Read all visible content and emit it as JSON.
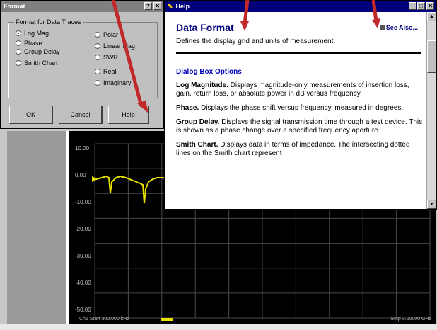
{
  "format_dialog": {
    "title": "Format",
    "help_btn": "?",
    "close_btn": "✕",
    "group_label": "Format for Data Traces",
    "options_left": [
      "Log Mag",
      "Phase",
      "Group Delay",
      "Smith Chart"
    ],
    "options_right": [
      "Polar",
      "Linear Mag",
      "SWR",
      "Real",
      "Imaginary"
    ],
    "selected": "Log Mag",
    "buttons": {
      "ok": "OK",
      "cancel": "Cancel",
      "help": "Help"
    }
  },
  "help_window": {
    "title": "Help",
    "window_btns": [
      "_",
      "□",
      "✕"
    ],
    "heading": "Data Format",
    "see_also": "See Also...",
    "description": "Defines the display grid and units of measurement.",
    "subheading": "Dialog Box Options",
    "items": [
      {
        "term": "Log Magnitude.",
        "text": " Displays magnitude-only measurements of insertion loss, gain, return loss, or absolute power in dB versus frequency."
      },
      {
        "term": "Phase.",
        "text": " Displays the phase shift versus frequency, measured in degrees."
      },
      {
        "term": "Group Delay.",
        "text": " Displays the signal transmission time through a test device. This is shown as a phase change over a specified frequency aperture."
      },
      {
        "term": "Smith Chart.",
        "text": " Displays data in terms of impedance. The intersecting dotted lines on the Smith chart represent"
      }
    ],
    "scroll_up": "▲",
    "scroll_down": "▼"
  },
  "analyzer": {
    "y_ticks": [
      "10.00",
      "0.00",
      "-10.00",
      "-20.00",
      "-30.00",
      "-40.00",
      "-50.00"
    ],
    "start_label": "Ch1  Start  300.000 kHz",
    "stop_label": "Stop  3.00000 GHz",
    "trace_color": "#e8e000"
  },
  "colors": {
    "help_title_bg": "#00007a",
    "dialog_title_bg": "#808080",
    "arrow": "#c0282a"
  }
}
